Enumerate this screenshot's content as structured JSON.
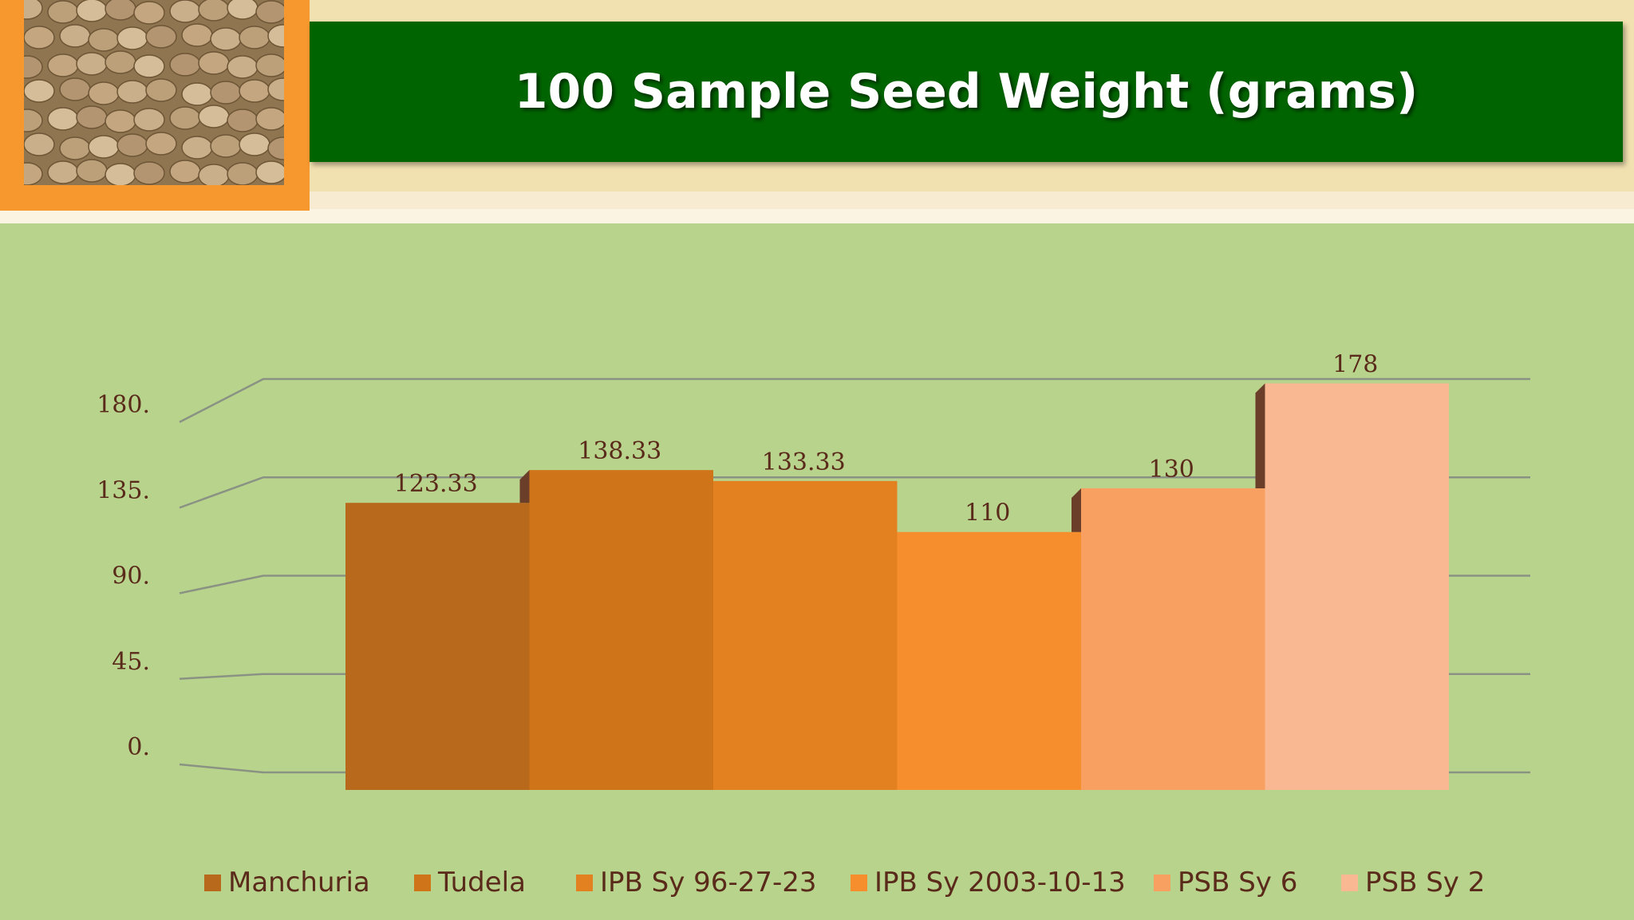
{
  "slide": {
    "title": "100 Sample Seed Weight (grams)"
  },
  "photo": {
    "icon": "soybean-seeds-photo"
  },
  "chart_data": {
    "type": "bar",
    "title": "100 Sample Seed Weight (grams)",
    "categories": [
      "Manchuria",
      "Tudela",
      "IPB Sy 96-27-23",
      "IPB Sy 2003-10-13",
      "PSB Sy 6",
      "PSB Sy 2"
    ],
    "values": [
      123.33,
      138.33,
      133.33,
      110,
      130,
      178
    ],
    "value_labels": [
      "123.33",
      "138.33",
      "133.33",
      "110",
      "130",
      "178"
    ],
    "y_ticks": [
      0,
      45,
      90,
      135,
      180
    ],
    "y_tick_labels": [
      "0.",
      "45.",
      "90.",
      "135.",
      "180."
    ],
    "ylim": [
      0,
      180
    ],
    "grid": true,
    "legend_position": "bottom",
    "colors": [
      "#b8691b",
      "#cf7419",
      "#e38120",
      "#f68e2e",
      "#f8a062",
      "#f9b892"
    ],
    "xlabel": "",
    "ylabel": ""
  }
}
